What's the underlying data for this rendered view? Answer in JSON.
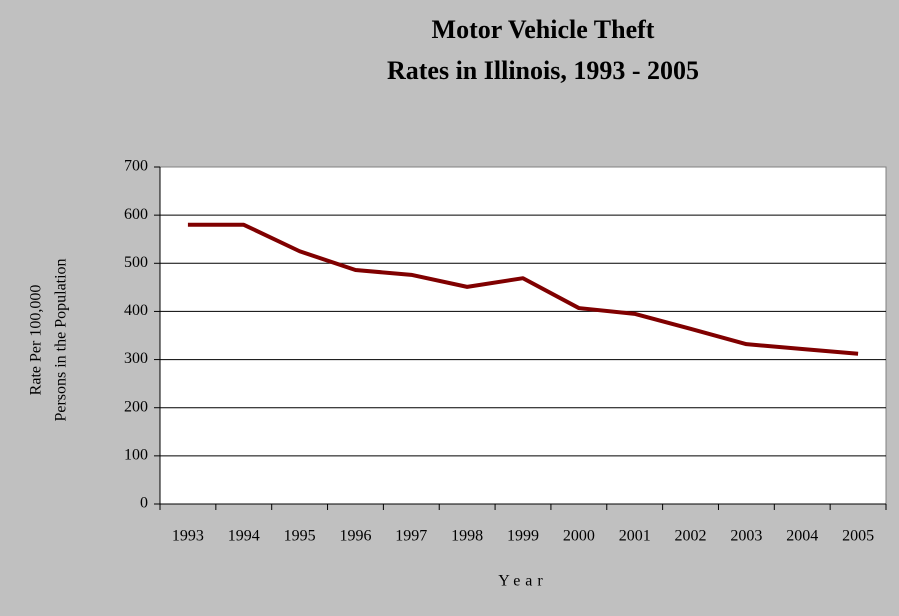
{
  "chart_data": {
    "type": "line",
    "title": [
      "Motor Vehicle Theft",
      "Rates in Illinois, 1993 - 2005"
    ],
    "y_label": [
      "Rate Per 100,000",
      "Persons in the Population"
    ],
    "x_label": "Year",
    "categories": [
      "1993",
      "1994",
      "1995",
      "1996",
      "1997",
      "1998",
      "1999",
      "2000",
      "2001",
      "2002",
      "2003",
      "2004",
      "2005"
    ],
    "values": [
      580,
      580,
      525,
      486,
      476,
      451,
      469,
      407,
      395,
      364,
      332,
      322,
      312
    ],
    "color": "#800000",
    "ylim": [
      0,
      700
    ],
    "yticks": [
      0,
      100,
      200,
      300,
      400,
      500,
      600,
      700
    ],
    "grid": true
  }
}
